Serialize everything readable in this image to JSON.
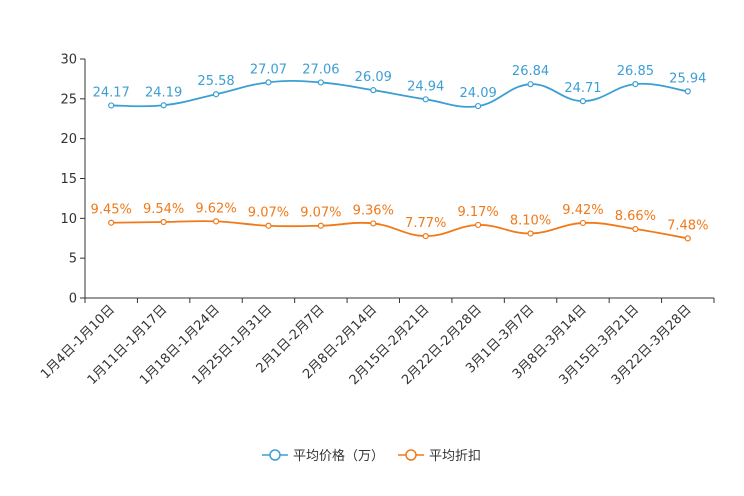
{
  "chart_data": {
    "type": "line",
    "categories": [
      "1月4日-1月10日",
      "1月11日-1月17日",
      "1月18日-1月24日",
      "1月25日-1月31日",
      "2月1日-2月7日",
      "2月8日-2月14日",
      "2月15日-2月21日",
      "2月22日-2月28日",
      "3月1日-3月7日",
      "3月8日-3月14日",
      "3月15日-3月21日",
      "3月22日-3月28日"
    ],
    "series": [
      {
        "name": "平均价格（万）",
        "color": "#3c9fd4",
        "values": [
          24.17,
          24.19,
          25.58,
          27.07,
          27.06,
          26.09,
          24.94,
          24.09,
          26.84,
          24.71,
          26.85,
          25.94
        ],
        "labels": [
          "24.17",
          "24.19",
          "25.58",
          "27.07",
          "27.06",
          "26.09",
          "24.94",
          "24.09",
          "26.84",
          "24.71",
          "26.85",
          "25.94"
        ]
      },
      {
        "name": "平均折扣",
        "color": "#f07a1a",
        "values": [
          9.45,
          9.54,
          9.62,
          9.07,
          9.07,
          9.36,
          7.77,
          9.17,
          8.1,
          9.42,
          8.66,
          7.48
        ],
        "labels": [
          "9.45%",
          "9.54%",
          "9.62%",
          "9.07%",
          "9.07%",
          "9.36%",
          "7.77%",
          "9.17%",
          "8.10%",
          "9.42%",
          "8.66%",
          "7.48%"
        ]
      }
    ],
    "ylim": [
      0,
      30
    ],
    "yticks": [
      "0",
      "5",
      "10",
      "15",
      "20",
      "25",
      "30"
    ],
    "legend_position": "bottom-center",
    "grid": false
  }
}
